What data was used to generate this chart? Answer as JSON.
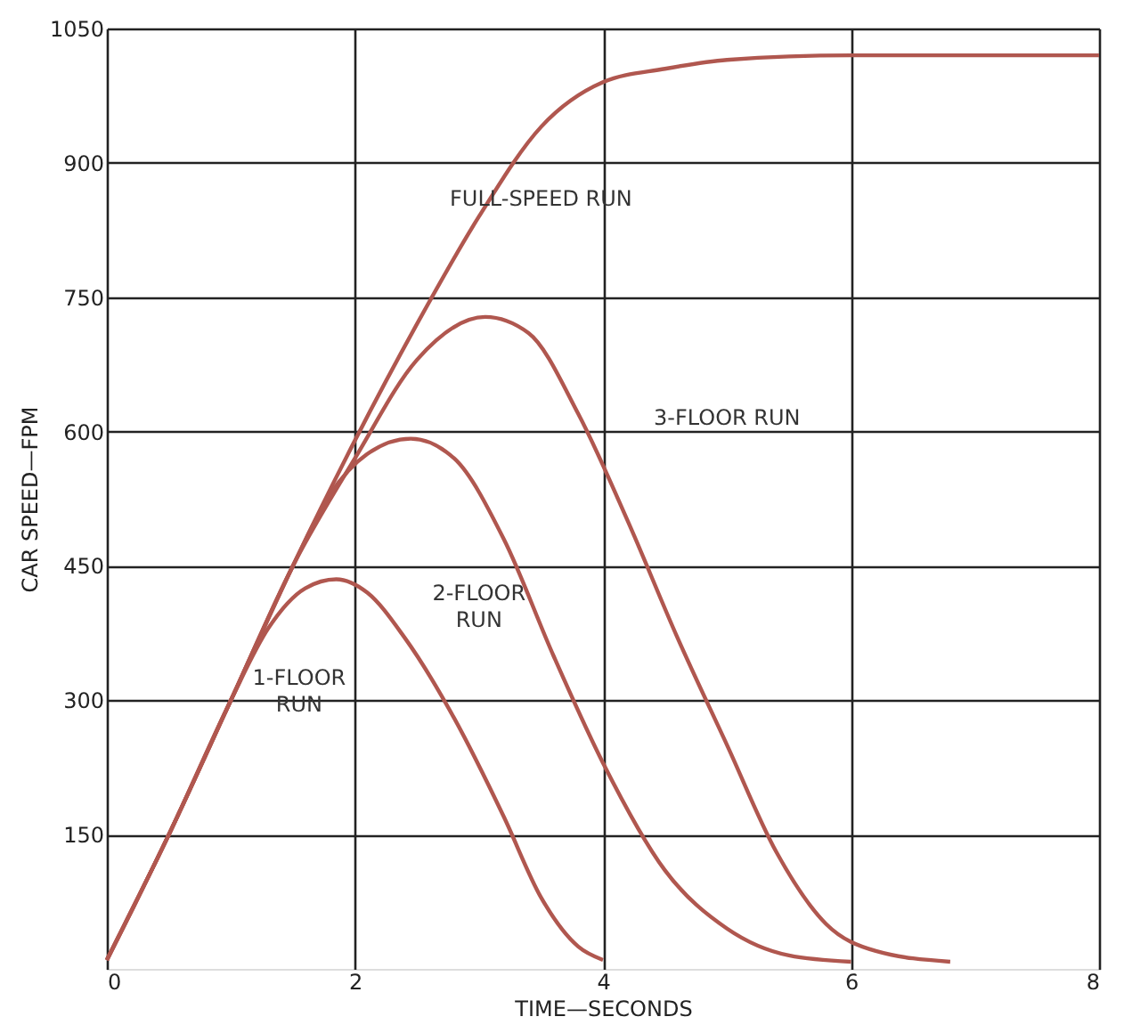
{
  "chart_data": {
    "type": "line",
    "xlabel": "TIME—SECONDS",
    "ylabel": "CAR SPEED—FPM",
    "xlim": [
      0,
      8
    ],
    "ylim": [
      0,
      1050
    ],
    "xticks": [
      0,
      2,
      4,
      6,
      8
    ],
    "yticks": [
      150,
      300,
      450,
      600,
      750,
      900,
      1050
    ],
    "grid": true,
    "marker": "none",
    "line_style": "solid",
    "series": [
      {
        "name": "FULL-SPEED RUN",
        "color": "#b0574f",
        "x": [
          0,
          0.5,
          1,
          1.5,
          2,
          2.5,
          3,
          3.5,
          4,
          4.5,
          5,
          6,
          7,
          8
        ],
        "values": [
          10,
          150,
          300,
          450,
          590,
          720,
          840,
          940,
          990,
          1005,
          1015,
          1020,
          1020,
          1020
        ]
      },
      {
        "name": "3-FLOOR RUN",
        "color": "#b0574f",
        "x": [
          0,
          0.5,
          1,
          1.5,
          2,
          2.5,
          3.05,
          3.4,
          3.8,
          4.2,
          4.6,
          5,
          5.4,
          5.8,
          6.2,
          6.8
        ],
        "values": [
          10,
          150,
          300,
          450,
          570,
          680,
          728,
          710,
          620,
          500,
          370,
          250,
          130,
          50,
          20,
          8
        ]
      },
      {
        "name": "2-FLOOR RUN",
        "color": "#b0574f",
        "x": [
          0,
          0.5,
          1,
          1.5,
          1.8,
          2.1,
          2.45,
          2.8,
          3.2,
          3.6,
          4,
          4.5,
          5,
          5.5,
          6
        ],
        "values": [
          10,
          150,
          300,
          450,
          530,
          575,
          592,
          570,
          480,
          350,
          230,
          110,
          45,
          15,
          8
        ]
      },
      {
        "name": "1-FLOOR RUN",
        "color": "#b0574f",
        "x": [
          0,
          0.5,
          1,
          1.3,
          1.6,
          1.85,
          2.1,
          2.4,
          2.8,
          3.2,
          3.5,
          3.8,
          4
        ],
        "values": [
          10,
          150,
          300,
          380,
          425,
          435,
          420,
          370,
          280,
          170,
          80,
          25,
          10
        ]
      }
    ]
  }
}
